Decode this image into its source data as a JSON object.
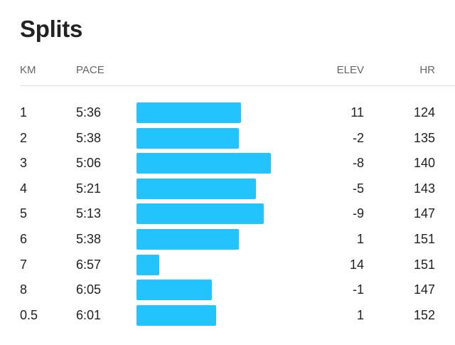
{
  "title": "Splits",
  "columns": {
    "km": "KM",
    "pace": "PACE",
    "elev": "ELEV",
    "hr": "HR"
  },
  "bar_color": "#22c3ff",
  "splits": [
    {
      "km": "1",
      "pace": "5:36",
      "elev": "11",
      "hr": "124",
      "pace_seconds": 336
    },
    {
      "km": "2",
      "pace": "5:38",
      "elev": "-2",
      "hr": "135",
      "pace_seconds": 338
    },
    {
      "km": "3",
      "pace": "5:06",
      "elev": "-8",
      "hr": "140",
      "pace_seconds": 306
    },
    {
      "km": "4",
      "pace": "5:21",
      "elev": "-5",
      "hr": "143",
      "pace_seconds": 321
    },
    {
      "km": "5",
      "pace": "5:13",
      "elev": "-9",
      "hr": "147",
      "pace_seconds": 313
    },
    {
      "km": "6",
      "pace": "5:38",
      "elev": "1",
      "hr": "151",
      "pace_seconds": 338
    },
    {
      "km": "7",
      "pace": "6:57",
      "elev": "14",
      "hr": "151",
      "pace_seconds": 417
    },
    {
      "km": "8",
      "pace": "6:05",
      "elev": "-1",
      "hr": "147",
      "pace_seconds": 365
    },
    {
      "km": "0.5",
      "pace": "6:01",
      "elev": "1",
      "hr": "152",
      "pace_seconds": 361
    }
  ]
}
